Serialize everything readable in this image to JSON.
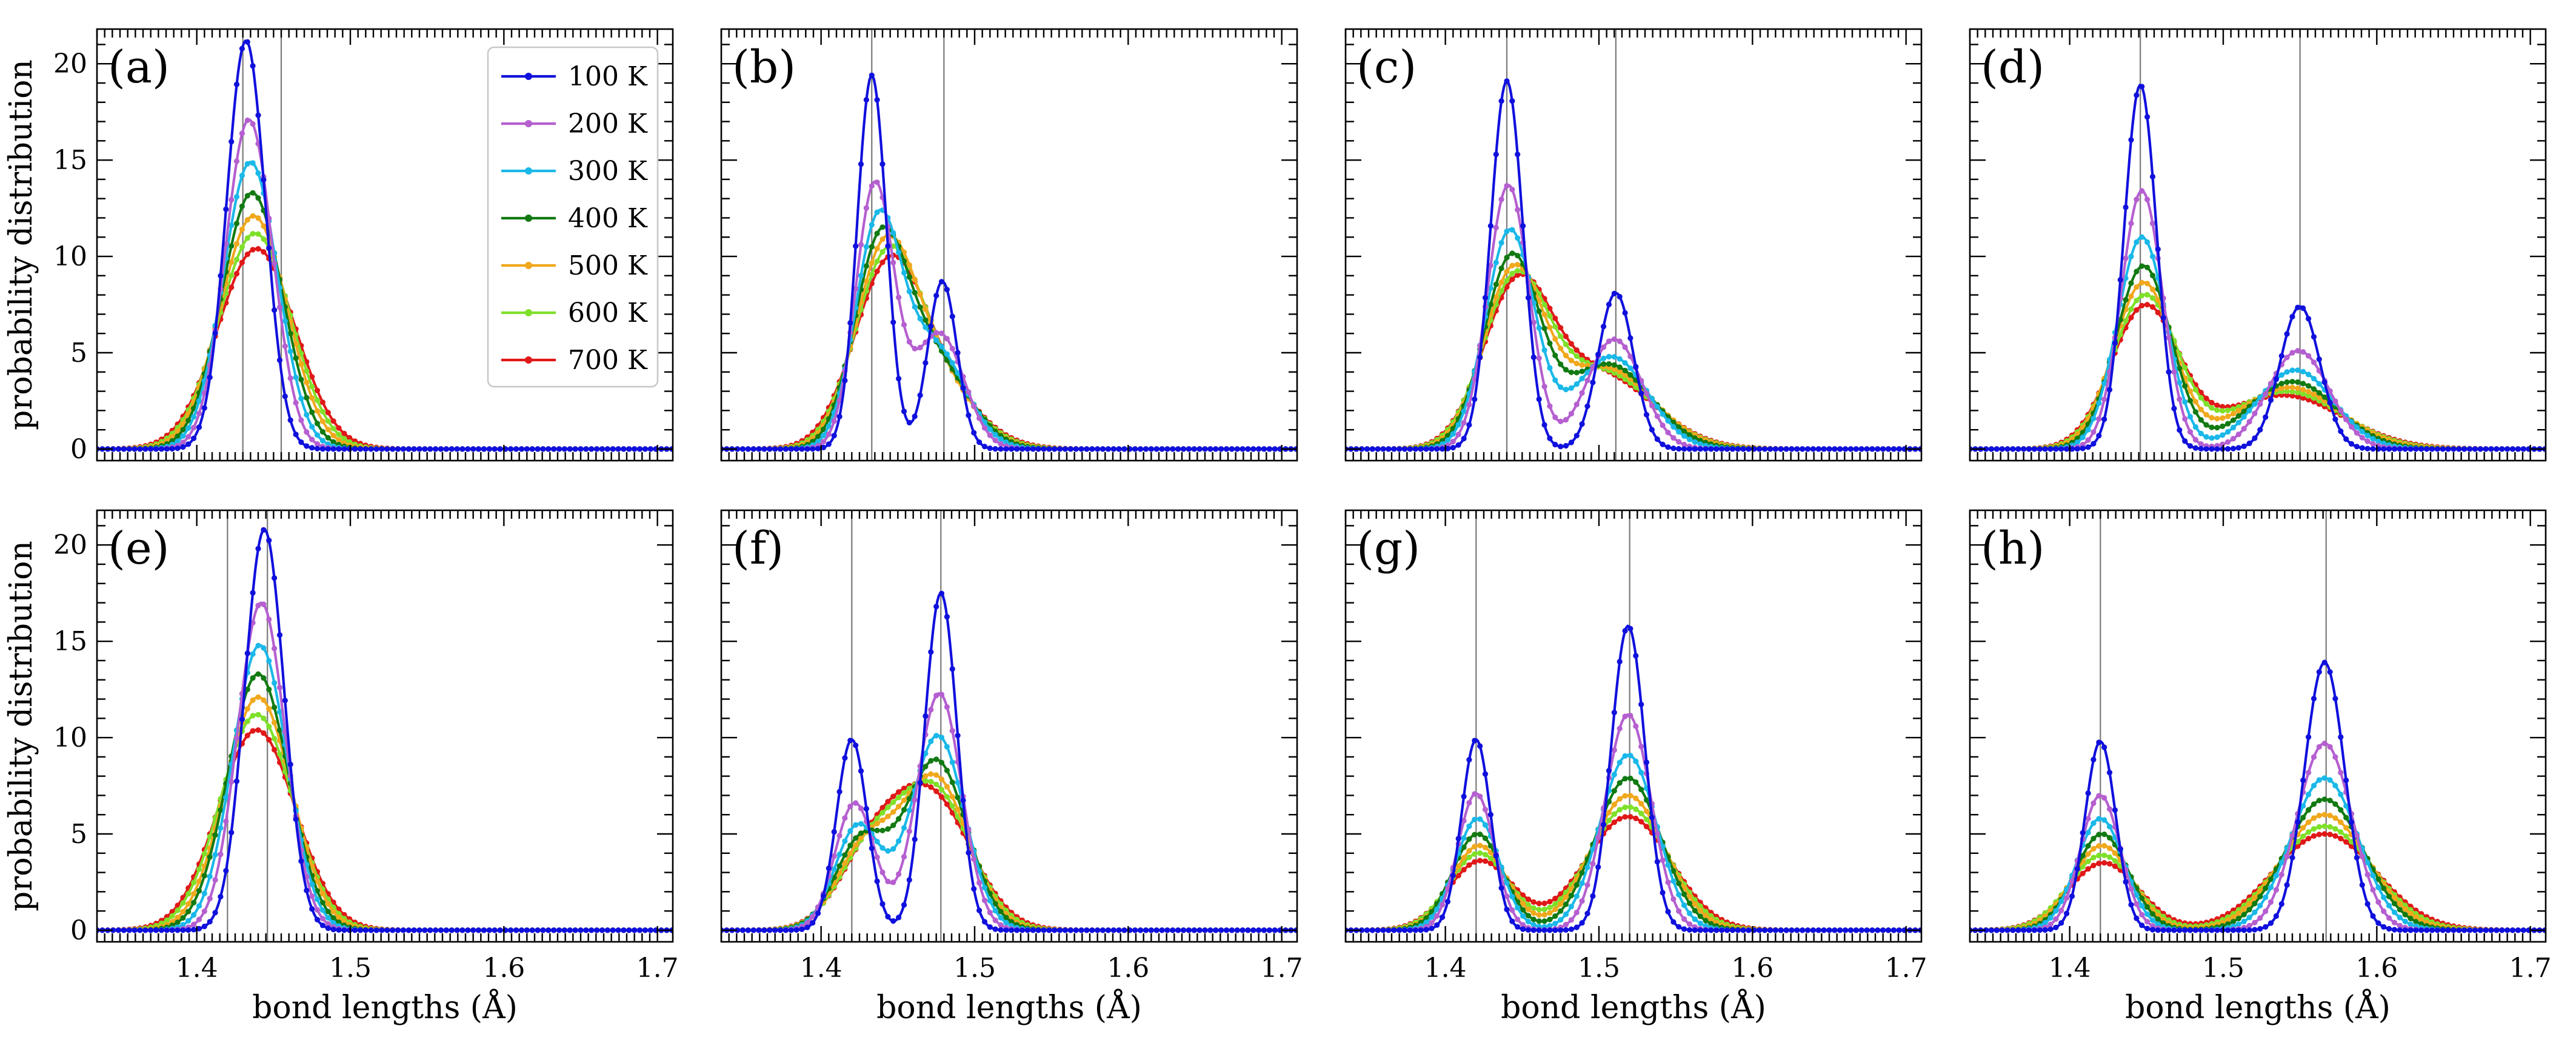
{
  "figure": {
    "xlabel": "bond lengths (Å)",
    "ylabel": "probability distribution",
    "xlim": [
      1.335,
      1.71
    ],
    "ylim": [
      -0.6,
      21.8
    ],
    "xticks": [
      1.4,
      1.5,
      1.6,
      1.7
    ],
    "xtick_labels": [
      "1.4",
      "1.5",
      "1.6",
      "1.7"
    ],
    "yticks": [
      0,
      5,
      10,
      15,
      20
    ],
    "ytick_labels": [
      "0",
      "5",
      "10",
      "15",
      "20"
    ],
    "legend": {
      "location": "top-right of panel (a)",
      "entries": [
        {
          "label": "100 K",
          "color": "#1010dd"
        },
        {
          "label": "200 K",
          "color": "#b55fd0"
        },
        {
          "label": "300 K",
          "color": "#1ab8e8"
        },
        {
          "label": "400 K",
          "color": "#127a12"
        },
        {
          "label": "500 K",
          "color": "#f0a81c"
        },
        {
          "label": "600 K",
          "color": "#7fe02a"
        },
        {
          "label": "700 K",
          "color": "#e01818"
        }
      ]
    }
  },
  "chart_data": [
    {
      "type": "line",
      "panel": "(a)",
      "reference_lines_x": [
        1.43,
        1.455
      ],
      "series": [
        {
          "name": "100 K",
          "components": [
            {
              "mu": 1.432,
              "sigma": 0.0126,
              "height": 21.2
            }
          ]
        },
        {
          "name": "200 K",
          "components": [
            {
              "mu": 1.434,
              "sigma": 0.0154,
              "height": 17.1
            }
          ]
        },
        {
          "name": "300 K",
          "components": [
            {
              "mu": 1.435,
              "sigma": 0.0177,
              "height": 14.9
            }
          ]
        },
        {
          "name": "400 K",
          "components": [
            {
              "mu": 1.436,
              "sigma": 0.0198,
              "height": 13.3
            }
          ]
        },
        {
          "name": "500 K",
          "components": [
            {
              "mu": 1.437,
              "sigma": 0.0218,
              "height": 12.1
            }
          ]
        },
        {
          "name": "600 K",
          "components": [
            {
              "mu": 1.438,
              "sigma": 0.0235,
              "height": 11.2
            }
          ]
        },
        {
          "name": "700 K",
          "components": [
            {
              "mu": 1.439,
              "sigma": 0.0252,
              "height": 10.4
            }
          ]
        }
      ]
    },
    {
      "type": "line",
      "panel": "(b)",
      "reference_lines_x": [
        1.433,
        1.48
      ],
      "series": [
        {
          "name": "100 K",
          "components": [
            {
              "mu": 1.433,
              "sigma": 0.0095,
              "height": 19.4
            },
            {
              "mu": 1.479,
              "sigma": 0.0095,
              "height": 8.7
            }
          ]
        },
        {
          "name": "200 K",
          "components": [
            {
              "mu": 1.435,
              "sigma": 0.0125,
              "height": 13.7
            },
            {
              "mu": 1.477,
              "sigma": 0.016,
              "height": 6.0
            }
          ]
        },
        {
          "name": "300 K",
          "components": [
            {
              "mu": 1.437,
              "sigma": 0.015,
              "height": 11.4
            },
            {
              "mu": 1.474,
              "sigma": 0.02,
              "height": 5.2
            }
          ]
        },
        {
          "name": "400 K",
          "components": [
            {
              "mu": 1.438,
              "sigma": 0.017,
              "height": 9.8
            },
            {
              "mu": 1.472,
              "sigma": 0.023,
              "height": 4.7
            }
          ]
        },
        {
          "name": "500 K",
          "components": [
            {
              "mu": 1.44,
              "sigma": 0.019,
              "height": 8.8
            },
            {
              "mu": 1.47,
              "sigma": 0.025,
              "height": 4.3
            }
          ]
        },
        {
          "name": "600 K",
          "components": [
            {
              "mu": 1.441,
              "sigma": 0.0205,
              "height": 8.0
            },
            {
              "mu": 1.469,
              "sigma": 0.027,
              "height": 4.0
            }
          ]
        },
        {
          "name": "700 K",
          "components": [
            {
              "mu": 1.442,
              "sigma": 0.022,
              "height": 7.4
            },
            {
              "mu": 1.468,
              "sigma": 0.029,
              "height": 3.7
            }
          ]
        }
      ]
    },
    {
      "type": "line",
      "panel": "(c)",
      "reference_lines_x": [
        1.44,
        1.511
      ],
      "series": [
        {
          "name": "100 K",
          "components": [
            {
              "mu": 1.44,
              "sigma": 0.0105,
              "height": 19.1
            },
            {
              "mu": 1.511,
              "sigma": 0.0115,
              "height": 8.1
            }
          ]
        },
        {
          "name": "200 K",
          "components": [
            {
              "mu": 1.441,
              "sigma": 0.0135,
              "height": 13.7
            },
            {
              "mu": 1.51,
              "sigma": 0.018,
              "height": 5.7
            }
          ]
        },
        {
          "name": "300 K",
          "components": [
            {
              "mu": 1.442,
              "sigma": 0.016,
              "height": 11.3
            },
            {
              "mu": 1.508,
              "sigma": 0.024,
              "height": 4.8
            }
          ]
        },
        {
          "name": "400 K",
          "components": [
            {
              "mu": 1.443,
              "sigma": 0.018,
              "height": 9.8
            },
            {
              "mu": 1.506,
              "sigma": 0.028,
              "height": 4.4
            }
          ]
        },
        {
          "name": "500 K",
          "components": [
            {
              "mu": 1.444,
              "sigma": 0.0195,
              "height": 8.9
            },
            {
              "mu": 1.504,
              "sigma": 0.031,
              "height": 4.2
            }
          ]
        },
        {
          "name": "600 K",
          "components": [
            {
              "mu": 1.445,
              "sigma": 0.021,
              "height": 8.3
            },
            {
              "mu": 1.502,
              "sigma": 0.033,
              "height": 4.0
            }
          ]
        },
        {
          "name": "700 K",
          "components": [
            {
              "mu": 1.446,
              "sigma": 0.022,
              "height": 7.8
            },
            {
              "mu": 1.5,
              "sigma": 0.035,
              "height": 3.9
            }
          ]
        }
      ]
    },
    {
      "type": "line",
      "panel": "(d)",
      "reference_lines_x": [
        1.446,
        1.55
      ],
      "series": [
        {
          "name": "100 K",
          "components": [
            {
              "mu": 1.446,
              "sigma": 0.0105,
              "height": 18.9
            },
            {
              "mu": 1.55,
              "sigma": 0.013,
              "height": 7.4
            }
          ]
        },
        {
          "name": "200 K",
          "components": [
            {
              "mu": 1.447,
              "sigma": 0.0135,
              "height": 13.4
            },
            {
              "mu": 1.549,
              "sigma": 0.02,
              "height": 5.1
            }
          ]
        },
        {
          "name": "300 K",
          "components": [
            {
              "mu": 1.447,
              "sigma": 0.016,
              "height": 11.0
            },
            {
              "mu": 1.547,
              "sigma": 0.025,
              "height": 4.1
            }
          ]
        },
        {
          "name": "400 K",
          "components": [
            {
              "mu": 1.448,
              "sigma": 0.018,
              "height": 9.5
            },
            {
              "mu": 1.545,
              "sigma": 0.029,
              "height": 3.5
            }
          ]
        },
        {
          "name": "500 K",
          "components": [
            {
              "mu": 1.448,
              "sigma": 0.0195,
              "height": 8.6
            },
            {
              "mu": 1.543,
              "sigma": 0.033,
              "height": 3.2
            }
          ]
        },
        {
          "name": "600 K",
          "components": [
            {
              "mu": 1.449,
              "sigma": 0.021,
              "height": 7.9
            },
            {
              "mu": 1.541,
              "sigma": 0.036,
              "height": 3.0
            }
          ]
        },
        {
          "name": "700 K",
          "components": [
            {
              "mu": 1.449,
              "sigma": 0.022,
              "height": 7.3
            },
            {
              "mu": 1.539,
              "sigma": 0.039,
              "height": 2.8
            }
          ]
        }
      ]
    },
    {
      "type": "line",
      "panel": "(e)",
      "reference_lines_x": [
        1.42,
        1.446
      ],
      "series": [
        {
          "name": "100 K",
          "components": [
            {
              "mu": 1.444,
              "sigma": 0.0128,
              "height": 20.8
            }
          ]
        },
        {
          "name": "200 K",
          "components": [
            {
              "mu": 1.442,
              "sigma": 0.0155,
              "height": 17.0
            }
          ]
        },
        {
          "name": "300 K",
          "components": [
            {
              "mu": 1.441,
              "sigma": 0.0178,
              "height": 14.8
            }
          ]
        },
        {
          "name": "400 K",
          "components": [
            {
              "mu": 1.44,
              "sigma": 0.0199,
              "height": 13.3
            }
          ]
        },
        {
          "name": "500 K",
          "components": [
            {
              "mu": 1.44,
              "sigma": 0.0218,
              "height": 12.1
            }
          ]
        },
        {
          "name": "600 K",
          "components": [
            {
              "mu": 1.439,
              "sigma": 0.0236,
              "height": 11.2
            }
          ]
        },
        {
          "name": "700 K",
          "components": [
            {
              "mu": 1.439,
              "sigma": 0.0252,
              "height": 10.4
            }
          ]
        }
      ]
    },
    {
      "type": "line",
      "panel": "(f)",
      "reference_lines_x": [
        1.42,
        1.478
      ],
      "series": [
        {
          "name": "100 K",
          "components": [
            {
              "mu": 1.42,
              "sigma": 0.01,
              "height": 9.9
            },
            {
              "mu": 1.478,
              "sigma": 0.0105,
              "height": 17.5
            }
          ]
        },
        {
          "name": "200 K",
          "components": [
            {
              "mu": 1.422,
              "sigma": 0.013,
              "height": 6.6
            },
            {
              "mu": 1.477,
              "sigma": 0.0145,
              "height": 12.3
            }
          ]
        },
        {
          "name": "300 K",
          "components": [
            {
              "mu": 1.424,
              "sigma": 0.015,
              "height": 5.4
            },
            {
              "mu": 1.476,
              "sigma": 0.0175,
              "height": 10.1
            }
          ]
        },
        {
          "name": "400 K",
          "components": [
            {
              "mu": 1.426,
              "sigma": 0.017,
              "height": 4.6
            },
            {
              "mu": 1.475,
              "sigma": 0.02,
              "height": 8.8
            }
          ]
        },
        {
          "name": "500 K",
          "components": [
            {
              "mu": 1.428,
              "sigma": 0.0185,
              "height": 4.1
            },
            {
              "mu": 1.474,
              "sigma": 0.022,
              "height": 7.9
            }
          ]
        },
        {
          "name": "600 K",
          "components": [
            {
              "mu": 1.43,
              "sigma": 0.02,
              "height": 3.7
            },
            {
              "mu": 1.473,
              "sigma": 0.024,
              "height": 7.3
            }
          ]
        },
        {
          "name": "700 K",
          "components": [
            {
              "mu": 1.432,
              "sigma": 0.0215,
              "height": 3.4
            },
            {
              "mu": 1.472,
              "sigma": 0.026,
              "height": 6.8
            }
          ]
        }
      ]
    },
    {
      "type": "line",
      "panel": "(g)",
      "reference_lines_x": [
        1.42,
        1.52
      ],
      "series": [
        {
          "name": "100 K",
          "components": [
            {
              "mu": 1.42,
              "sigma": 0.0095,
              "height": 9.9
            },
            {
              "mu": 1.519,
              "sigma": 0.011,
              "height": 15.8
            }
          ]
        },
        {
          "name": "200 K",
          "components": [
            {
              "mu": 1.42,
              "sigma": 0.012,
              "height": 7.1
            },
            {
              "mu": 1.519,
              "sigma": 0.015,
              "height": 11.2
            }
          ]
        },
        {
          "name": "300 K",
          "components": [
            {
              "mu": 1.421,
              "sigma": 0.0145,
              "height": 5.8
            },
            {
              "mu": 1.519,
              "sigma": 0.0185,
              "height": 9.1
            }
          ]
        },
        {
          "name": "400 K",
          "components": [
            {
              "mu": 1.421,
              "sigma": 0.0165,
              "height": 5.0
            },
            {
              "mu": 1.519,
              "sigma": 0.0215,
              "height": 7.9
            }
          ]
        },
        {
          "name": "500 K",
          "components": [
            {
              "mu": 1.422,
              "sigma": 0.018,
              "height": 4.4
            },
            {
              "mu": 1.519,
              "sigma": 0.024,
              "height": 7.0
            }
          ]
        },
        {
          "name": "600 K",
          "components": [
            {
              "mu": 1.422,
              "sigma": 0.0195,
              "height": 4.0
            },
            {
              "mu": 1.519,
              "sigma": 0.026,
              "height": 6.4
            }
          ]
        },
        {
          "name": "700 K",
          "components": [
            {
              "mu": 1.423,
              "sigma": 0.021,
              "height": 3.6
            },
            {
              "mu": 1.519,
              "sigma": 0.028,
              "height": 5.9
            }
          ]
        }
      ]
    },
    {
      "type": "line",
      "panel": "(h)",
      "reference_lines_x": [
        1.42,
        1.567
      ],
      "series": [
        {
          "name": "100 K",
          "components": [
            {
              "mu": 1.42,
              "sigma": 0.01,
              "height": 9.8
            },
            {
              "mu": 1.566,
              "sigma": 0.013,
              "height": 13.9
            }
          ]
        },
        {
          "name": "200 K",
          "components": [
            {
              "mu": 1.42,
              "sigma": 0.013,
              "height": 7.0
            },
            {
              "mu": 1.566,
              "sigma": 0.018,
              "height": 9.7
            }
          ]
        },
        {
          "name": "300 K",
          "components": [
            {
              "mu": 1.42,
              "sigma": 0.0155,
              "height": 5.8
            },
            {
              "mu": 1.566,
              "sigma": 0.022,
              "height": 7.9
            }
          ]
        },
        {
          "name": "400 K",
          "components": [
            {
              "mu": 1.421,
              "sigma": 0.0175,
              "height": 5.0
            },
            {
              "mu": 1.566,
              "sigma": 0.0255,
              "height": 6.8
            }
          ]
        },
        {
          "name": "500 K",
          "components": [
            {
              "mu": 1.421,
              "sigma": 0.0195,
              "height": 4.4
            },
            {
              "mu": 1.566,
              "sigma": 0.0285,
              "height": 6.0
            }
          ]
        },
        {
          "name": "600 K",
          "components": [
            {
              "mu": 1.421,
              "sigma": 0.0215,
              "height": 3.9
            },
            {
              "mu": 1.566,
              "sigma": 0.031,
              "height": 5.4
            }
          ]
        },
        {
          "name": "700 K",
          "components": [
            {
              "mu": 1.422,
              "sigma": 0.023,
              "height": 3.5
            },
            {
              "mu": 1.566,
              "sigma": 0.0335,
              "height": 5.0
            }
          ]
        }
      ]
    }
  ]
}
